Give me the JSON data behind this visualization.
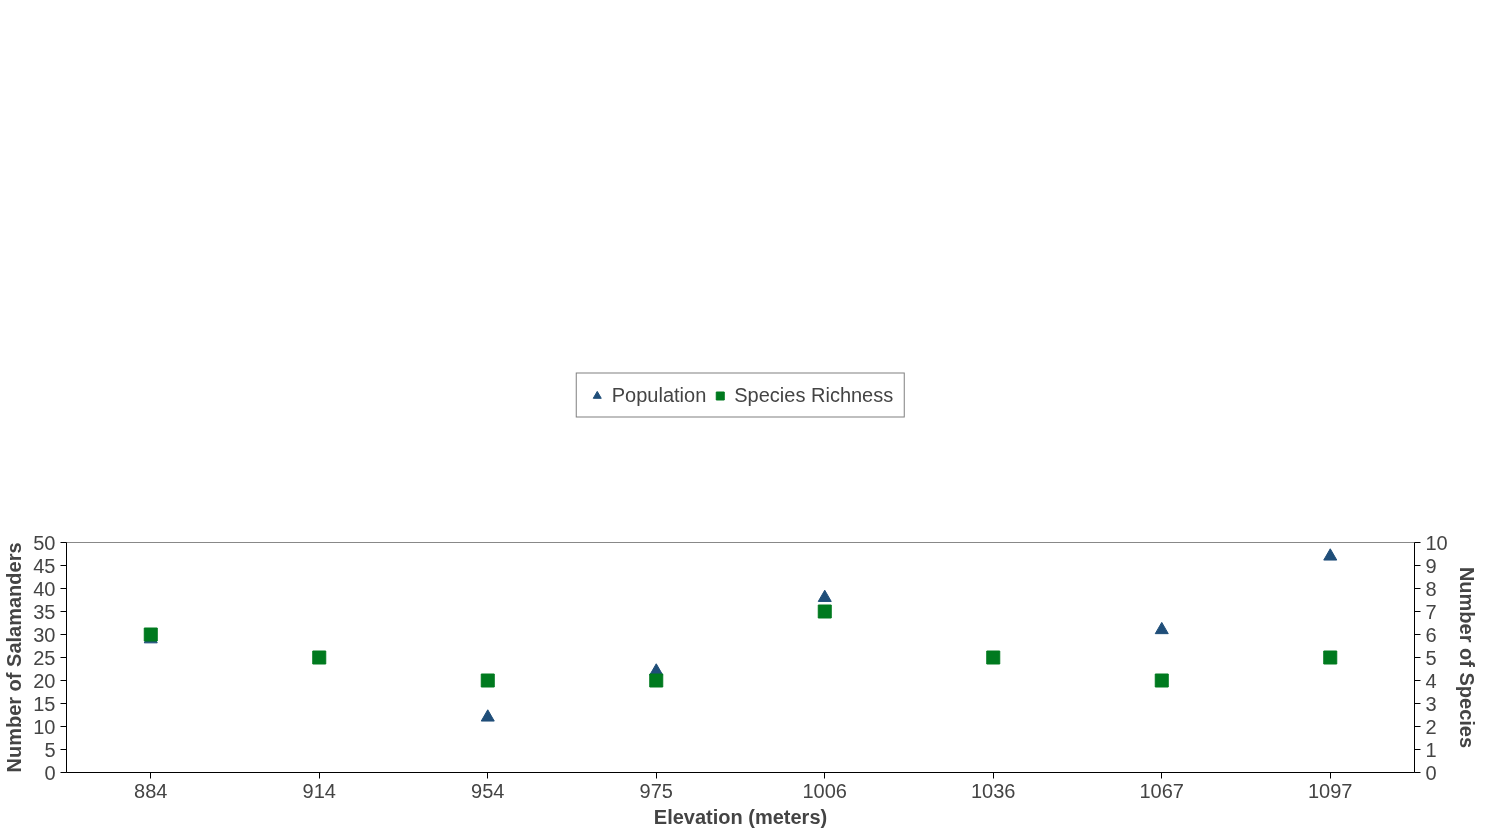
{
  "chart_data": {
    "type": "scatter",
    "xlabel": "Elevation (meters)",
    "ylabel": "Number of Salamanders",
    "y2label": "Number of Species",
    "categories": [
      "884",
      "914",
      "954",
      "975",
      "1006",
      "1036",
      "1067",
      "1097"
    ],
    "series": [
      {
        "name": "Population",
        "color": "#1f4e79",
        "marker": "triangle",
        "values": [
          29,
          null,
          12,
          22,
          38,
          null,
          31,
          47
        ]
      },
      {
        "name": "Species Richness",
        "color": "#007a1f",
        "marker": "square",
        "axis": "y2",
        "values": [
          6,
          5,
          4,
          4,
          7,
          5,
          4,
          5
        ]
      }
    ],
    "ylim": [
      0,
      50
    ],
    "yticks": [
      0,
      5,
      10,
      15,
      20,
      25,
      30,
      35,
      40,
      45,
      50
    ],
    "y2lim": [
      0,
      10
    ],
    "y2ticks": [
      0,
      1,
      2,
      3,
      4,
      5,
      6,
      7,
      8,
      9,
      10
    ],
    "grid": false,
    "legend": "top"
  }
}
